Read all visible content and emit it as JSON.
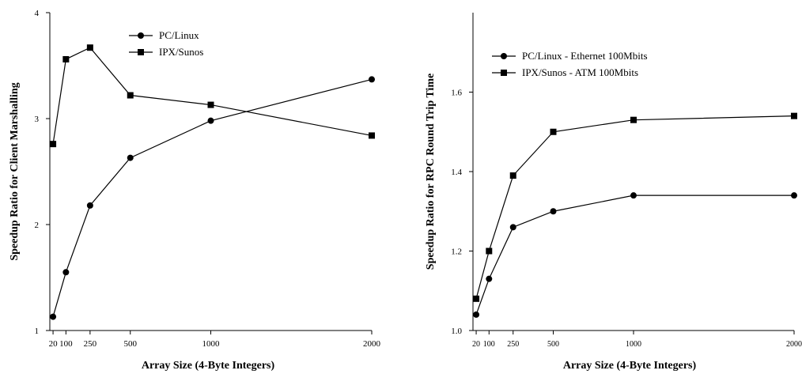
{
  "chart_data": [
    {
      "type": "line",
      "title": "",
      "xlabel": "Array Size (4-Byte Integers)",
      "ylabel": "Speedup Ratio for Client Marshalling",
      "x": [
        20,
        100,
        250,
        500,
        1000,
        2000
      ],
      "x_ticks": [
        "20",
        "100",
        "250",
        "500",
        "1000",
        "2000"
      ],
      "y_ticks": [
        "1",
        "2",
        "3",
        "4"
      ],
      "xlim": [
        0,
        2000
      ],
      "ylim": [
        1,
        4
      ],
      "grid": false,
      "legend_position": "top-center",
      "series": [
        {
          "name": "PC/Linux",
          "marker": "circle",
          "values": [
            1.13,
            1.55,
            2.18,
            2.63,
            2.98,
            3.37
          ]
        },
        {
          "name": "IPX/Sunos",
          "marker": "square",
          "values": [
            2.76,
            3.56,
            3.67,
            3.22,
            3.13,
            2.84
          ]
        }
      ]
    },
    {
      "type": "line",
      "title": "",
      "xlabel": "Array Size (4-Byte Integers)",
      "ylabel": "Speedup Ratio for RPC Round Trip Time",
      "x": [
        20,
        100,
        250,
        500,
        1000,
        2000
      ],
      "x_ticks": [
        "20",
        "100",
        "250",
        "500",
        "1000",
        "2000"
      ],
      "y_ticks": [
        "1.0",
        "1.2",
        "1.4",
        "1.6"
      ],
      "xlim": [
        0,
        2000
      ],
      "ylim": [
        1.0,
        1.8
      ],
      "grid": false,
      "legend_position": "top-left",
      "series": [
        {
          "name": "PC/Linux - Ethernet 100Mbits",
          "marker": "circle",
          "values": [
            1.04,
            1.13,
            1.26,
            1.3,
            1.34,
            1.34
          ]
        },
        {
          "name": "IPX/Sunos - ATM 100Mbits",
          "marker": "square",
          "values": [
            1.08,
            1.2,
            1.39,
            1.5,
            1.53,
            1.54
          ]
        }
      ]
    }
  ]
}
